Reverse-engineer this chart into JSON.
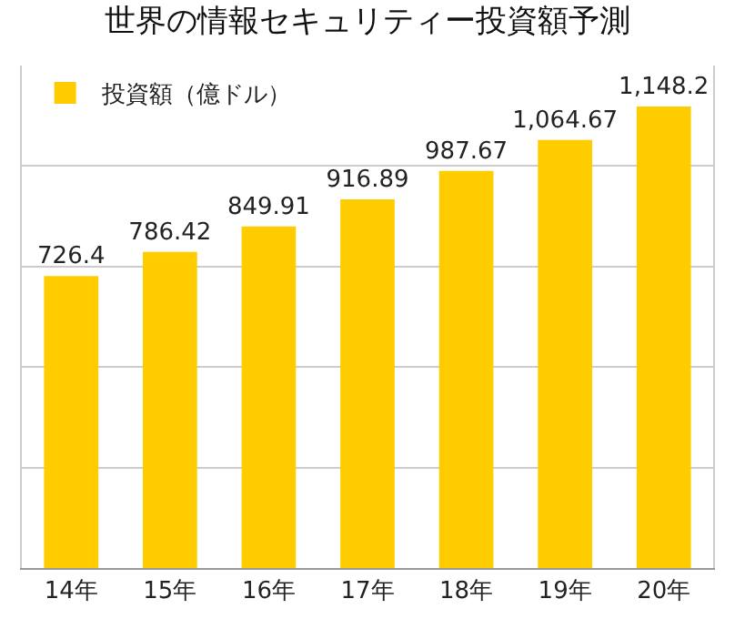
{
  "chart_data": {
    "type": "bar",
    "title": "世界の情報セキュリティー投資額予測",
    "categories": [
      "14年",
      "15年",
      "16年",
      "17年",
      "18年",
      "19年",
      "20年"
    ],
    "series": [
      {
        "name": "投資額（億ドル）",
        "color": "#ffcc00",
        "values": [
          726.4,
          786.42,
          849.91,
          916.89,
          987.67,
          1064.67,
          1148.2
        ],
        "value_labels": [
          "726.4",
          "786.42",
          "849.91",
          "916.89",
          "987.67",
          "1,064.67",
          "1,148.2"
        ]
      }
    ],
    "ylim": [
      0,
      1250
    ],
    "yticks": [
      {
        "value": 0,
        "label": null
      },
      {
        "value": 250,
        "label": null
      },
      {
        "value": 500,
        "label": null
      },
      {
        "value": 750,
        "label": null
      },
      {
        "value": 1000,
        "label": null
      }
    ],
    "tick_labels": "x",
    "grid": "y",
    "legend": "top left"
  }
}
